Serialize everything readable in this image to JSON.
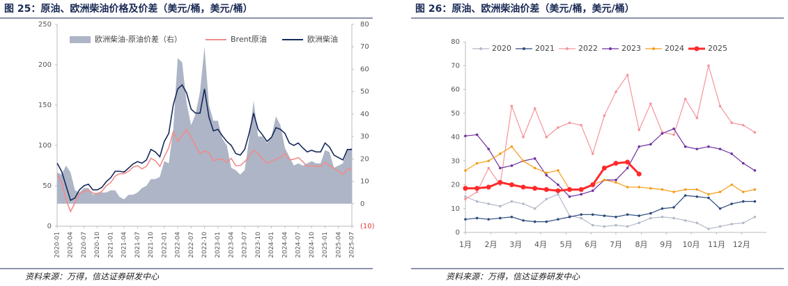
{
  "chart_data": [
    {
      "type": "line",
      "title": "图 25：原油、欧洲柴油价格及价差（美元/桶，美元/桶）",
      "source": "资料来源：万得，信达证券研发中心",
      "x": [
        "2020-01",
        "2020-02",
        "2020-03",
        "2020-04",
        "2020-05",
        "2020-06",
        "2020-07",
        "2020-08",
        "2020-09",
        "2020-10",
        "2020-11",
        "2020-12",
        "2021-01",
        "2021-02",
        "2021-03",
        "2021-04",
        "2021-05",
        "2021-06",
        "2021-07",
        "2021-08",
        "2021-09",
        "2021-10",
        "2021-11",
        "2021-12",
        "2022-01",
        "2022-02",
        "2022-03",
        "2022-04",
        "2022-05",
        "2022-06",
        "2022-07",
        "2022-08",
        "2022-09",
        "2022-10",
        "2022-11",
        "2022-12",
        "2023-01",
        "2023-02",
        "2023-03",
        "2023-04",
        "2023-05",
        "2023-06",
        "2023-07",
        "2023-08",
        "2023-09",
        "2023-10",
        "2023-11",
        "2023-12",
        "2024-01",
        "2024-02",
        "2024-03",
        "2024-04",
        "2024-05",
        "2024-06",
        "2024-07",
        "2024-08",
        "2024-09",
        "2024-10",
        "2024-11",
        "2024-12",
        "2025-01",
        "2025-02",
        "2025-03",
        "2025-04",
        "2025-05",
        "2025-06",
        "2025-07"
      ],
      "xticks": [
        "2020-01",
        "2020-04",
        "2020-07",
        "2020-10",
        "2021-01",
        "2021-04",
        "2021-07",
        "2021-10",
        "2022-01",
        "2022-04",
        "2022-07",
        "2022-10",
        "2023-01",
        "2023-04",
        "2023-07",
        "2023-10",
        "2024-01",
        "2024-04",
        "2024-07",
        "2024-10",
        "2025-01",
        "2025-04",
        "2025-07"
      ],
      "ylim": [
        0,
        250
      ],
      "yticks": [
        0,
        50,
        100,
        150,
        200,
        250
      ],
      "y2lim": [
        -10,
        80
      ],
      "y2ticks": [
        {
          "value": -10,
          "label": "(10)"
        },
        0,
        10,
        20,
        30,
        40,
        50,
        60,
        70,
        80
      ],
      "series": [
        {
          "name": "欧洲柴油-原油价差（右）",
          "color": "#adb5c6",
          "axis": "y2",
          "kind": "area",
          "values": [
            14,
            13,
            17,
            14,
            6,
            5,
            7,
            7,
            4,
            5,
            5,
            5,
            6,
            6,
            3,
            2,
            4,
            4,
            5,
            7,
            8,
            11,
            11,
            12,
            19,
            18,
            33,
            65,
            63,
            45,
            35,
            40,
            50,
            70,
            44,
            37,
            37,
            29,
            26,
            16,
            15,
            13,
            15,
            29,
            46,
            30,
            30,
            27,
            30,
            39,
            35,
            25,
            21,
            17,
            18,
            17,
            18,
            19,
            18,
            18,
            24,
            23,
            16,
            17,
            18,
            24,
            25
          ]
        },
        {
          "name": "Brent原油",
          "color": "#f08c8c",
          "values": [
            64,
            55,
            33,
            18,
            29,
            40,
            43,
            45,
            41,
            40,
            43,
            50,
            54,
            62,
            65,
            65,
            68,
            73,
            75,
            71,
            74,
            84,
            81,
            74,
            86,
            97,
            117,
            105,
            112,
            120,
            110,
            100,
            90,
            93,
            91,
            81,
            83,
            83,
            79,
            84,
            75,
            75,
            80,
            86,
            94,
            90,
            83,
            78,
            80,
            83,
            85,
            90,
            82,
            83,
            85,
            80,
            74,
            75,
            74,
            74,
            79,
            75,
            72,
            68,
            64,
            71,
            70
          ]
        },
        {
          "name": "欧洲柴油",
          "color": "#14285a",
          "values": [
            78,
            68,
            50,
            32,
            35,
            45,
            50,
            52,
            45,
            45,
            48,
            55,
            60,
            68,
            68,
            67,
            72,
            77,
            80,
            78,
            82,
            95,
            92,
            86,
            105,
            115,
            150,
            170,
            175,
            165,
            145,
            140,
            140,
            170,
            135,
            118,
            120,
            112,
            105,
            100,
            90,
            88,
            95,
            115,
            140,
            120,
            113,
            105,
            110,
            122,
            120,
            115,
            103,
            100,
            103,
            97,
            92,
            94,
            92,
            92,
            103,
            98,
            88,
            85,
            82,
            95,
            95
          ]
        }
      ]
    },
    {
      "type": "line",
      "title": "图 26：原油、欧洲柴油价差（美元/桶，美元/桶）",
      "source": "资料来源：万得，信达证券研发中心",
      "x": [
        1,
        3,
        5,
        7,
        9,
        11,
        13,
        15,
        17,
        19,
        21,
        23,
        25,
        27,
        29,
        31,
        33,
        35,
        37,
        39,
        41,
        43,
        45,
        47,
        49,
        51
      ],
      "xlim": [
        1,
        53
      ],
      "xticks": [
        {
          "value": 1,
          "label": "1月"
        },
        {
          "value": 5.4,
          "label": "2月"
        },
        {
          "value": 9.7,
          "label": "3月"
        },
        {
          "value": 14,
          "label": "4月"
        },
        {
          "value": 18.4,
          "label": "5月"
        },
        {
          "value": 22.7,
          "label": "6月"
        },
        {
          "value": 27,
          "label": "7月"
        },
        {
          "value": 31.4,
          "label": "8月"
        },
        {
          "value": 35.7,
          "label": "9月"
        },
        {
          "value": 40,
          "label": "10月"
        },
        {
          "value": 44.4,
          "label": "11月"
        },
        {
          "value": 48.7,
          "label": "12月"
        }
      ],
      "ylim": [
        0,
        80
      ],
      "yticks": [
        0,
        10,
        20,
        30,
        40,
        50,
        60,
        70,
        80
      ],
      "series": [
        {
          "name": "2020",
          "color": "#b4b9c8",
          "values": [
            15,
            13,
            12,
            11,
            13,
            12,
            10,
            14,
            16,
            7,
            6,
            3,
            2.5,
            3,
            2.5,
            4,
            6,
            6.5,
            6,
            5,
            4,
            1.5,
            2.5,
            3.5,
            4,
            6.5
          ]
        },
        {
          "name": "2021",
          "color": "#2c4a7c",
          "values": [
            5.5,
            6,
            5.5,
            6,
            6.5,
            5,
            4.5,
            4.5,
            5.5,
            6.5,
            7.5,
            7.5,
            7,
            6.5,
            7.5,
            7,
            8,
            10,
            10.5,
            15.5,
            15,
            14.5,
            10,
            12,
            13,
            13
          ]
        },
        {
          "name": "2022",
          "color": "#f4949b",
          "values": [
            14,
            17,
            27,
            20,
            53,
            40,
            52,
            40,
            44,
            46,
            45,
            33,
            49,
            59,
            66,
            43,
            54,
            42,
            41,
            56,
            48,
            70,
            53,
            46,
            45,
            42
          ]
        },
        {
          "name": "2023",
          "color": "#7030a0",
          "values": [
            40.5,
            41,
            35,
            27,
            28,
            30,
            31,
            24,
            20,
            15,
            16,
            17.5,
            22,
            22,
            27,
            36,
            37,
            41.5,
            43.5,
            36,
            35,
            36,
            35,
            33,
            29,
            26
          ]
        },
        {
          "name": "2024",
          "color": "#f59c1a",
          "values": [
            26,
            29,
            30,
            33,
            36,
            30,
            27,
            25,
            26,
            18,
            18,
            20,
            22,
            21,
            19,
            19,
            18.5,
            18,
            17,
            18,
            18,
            16,
            17,
            20,
            17,
            18
          ]
        },
        {
          "name": "2025",
          "color": "#ff2a2a",
          "thick": true,
          "values": [
            18.5,
            18.5,
            19,
            21,
            20,
            19,
            18.5,
            18,
            17.5,
            18,
            18,
            20,
            27,
            29,
            29.5,
            24.5,
            null,
            null,
            null,
            null,
            null,
            null,
            null,
            null,
            null,
            null
          ]
        }
      ]
    }
  ]
}
